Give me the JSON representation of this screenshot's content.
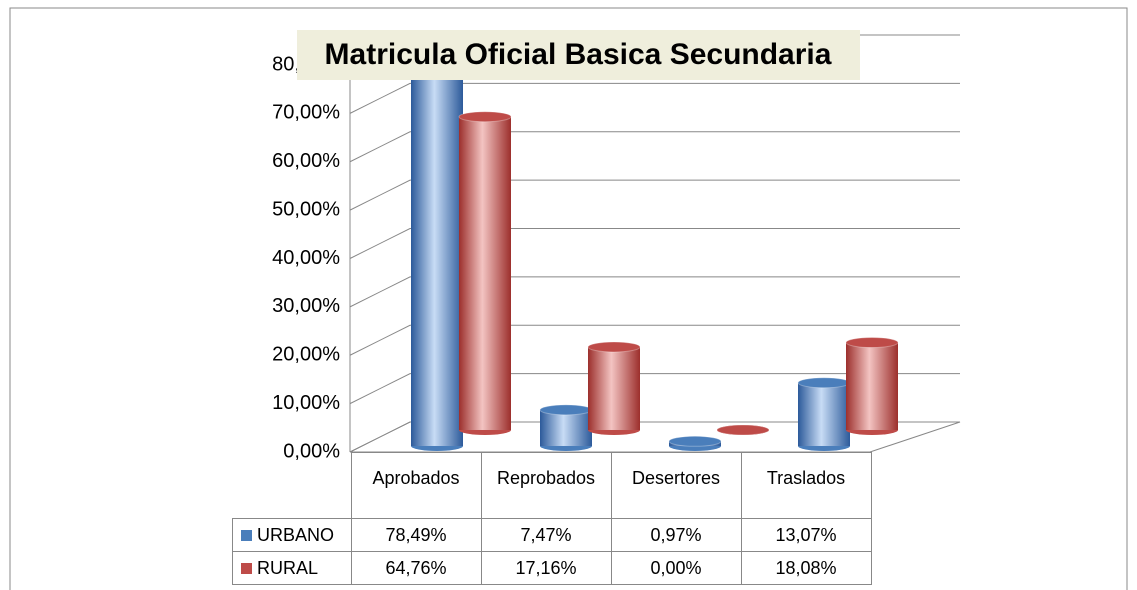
{
  "chart_data": {
    "type": "bar3d",
    "title": "Matricula  Oficial Basica Secundaria",
    "categories": [
      "Aprobados",
      "Reprobados",
      "Desertores",
      "Traslados"
    ],
    "series": [
      {
        "name": "URBANO",
        "color": "#4a7ebb",
        "values": [
          78.49,
          7.47,
          0.97,
          13.07
        ],
        "value_labels": [
          "78,49%",
          "7,47%",
          "0,97%",
          "13,07%"
        ]
      },
      {
        "name": "RURAL",
        "color": "#be4b48",
        "values": [
          64.76,
          17.16,
          0.0,
          18.08
        ],
        "value_labels": [
          "64,76%",
          "17,16%",
          "0,00%",
          "18,08%"
        ]
      }
    ],
    "ylim": [
      0,
      80
    ],
    "yticks": [
      {
        "value": 0,
        "label": "0,00%"
      },
      {
        "value": 10,
        "label": "10,00%"
      },
      {
        "value": 20,
        "label": "20,00%"
      },
      {
        "value": 30,
        "label": "30,00%"
      },
      {
        "value": 40,
        "label": "40,00%"
      },
      {
        "value": 50,
        "label": "50,00%"
      },
      {
        "value": 60,
        "label": "60,00%"
      },
      {
        "value": 70,
        "label": "70,00%"
      },
      {
        "value": 80,
        "label": "80,00%"
      }
    ],
    "grid": true
  }
}
